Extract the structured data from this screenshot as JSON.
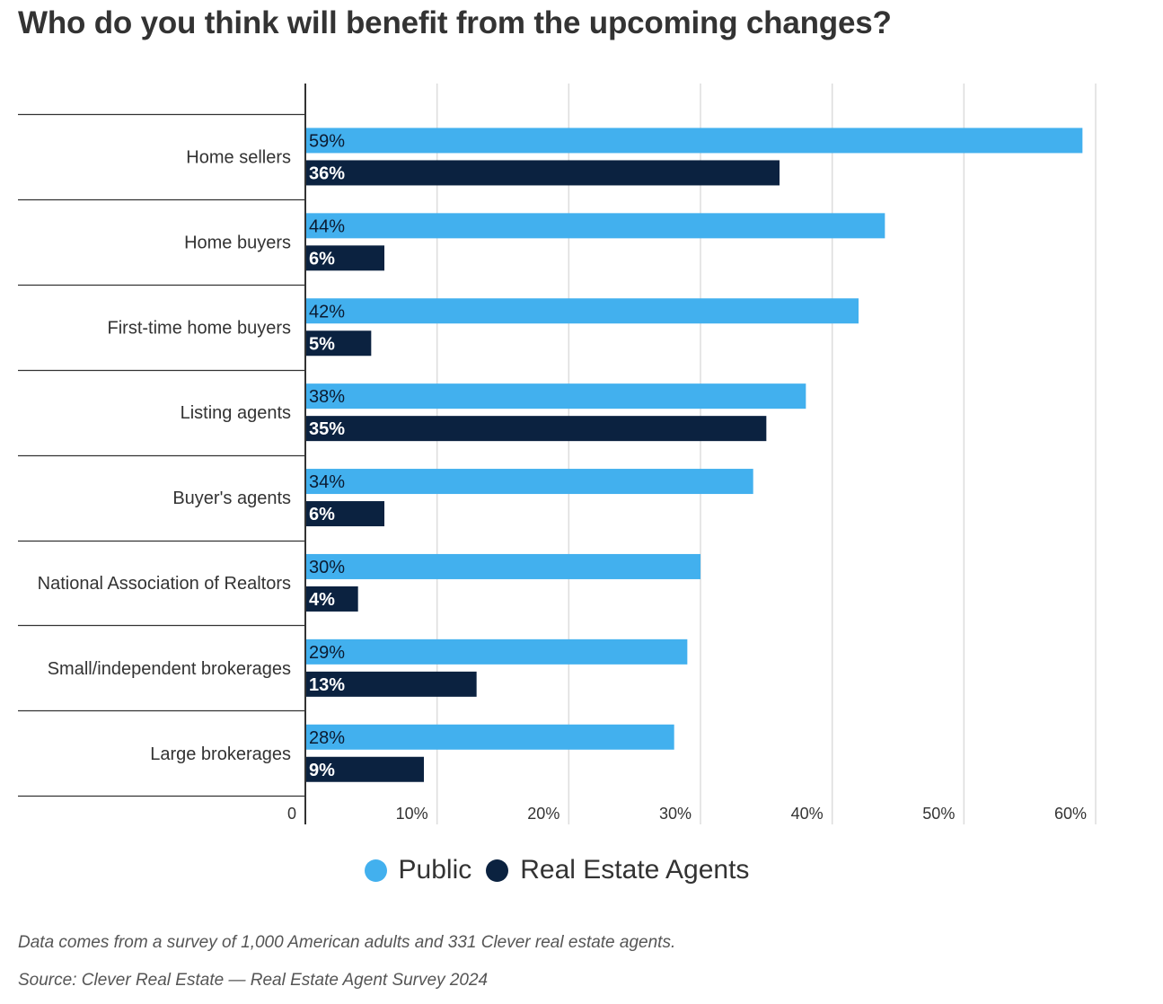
{
  "chart_data": {
    "type": "bar",
    "orientation": "horizontal",
    "title": "Who do you think will benefit from the upcoming changes?",
    "categories": [
      "Home sellers",
      "Home buyers",
      "First-time home buyers",
      "Listing agents",
      "Buyer's agents",
      "National Association of Realtors",
      "Small/independent brokerages",
      "Large brokerages"
    ],
    "series": [
      {
        "name": "Public",
        "color": "#42b0ee",
        "values": [
          59,
          44,
          42,
          38,
          34,
          30,
          29,
          28
        ]
      },
      {
        "name": "Real Estate Agents",
        "color": "#0b2240",
        "values": [
          36,
          6,
          5,
          35,
          6,
          4,
          13,
          9
        ]
      }
    ],
    "value_suffix": "%",
    "xlim": [
      0,
      60
    ],
    "x_ticks": [
      0,
      10,
      20,
      30,
      40,
      50,
      60
    ],
    "x_tick_labels": [
      "0",
      "10%",
      "20%",
      "30%",
      "40%",
      "50%",
      "60%"
    ],
    "grid": true,
    "legend_position": "bottom-center"
  },
  "notes": {
    "survey": "Data comes from a survey of 1,000 American adults and 331 Clever real estate agents.",
    "source": "Source: Clever Real Estate — Real Estate Agent Survey 2024"
  }
}
